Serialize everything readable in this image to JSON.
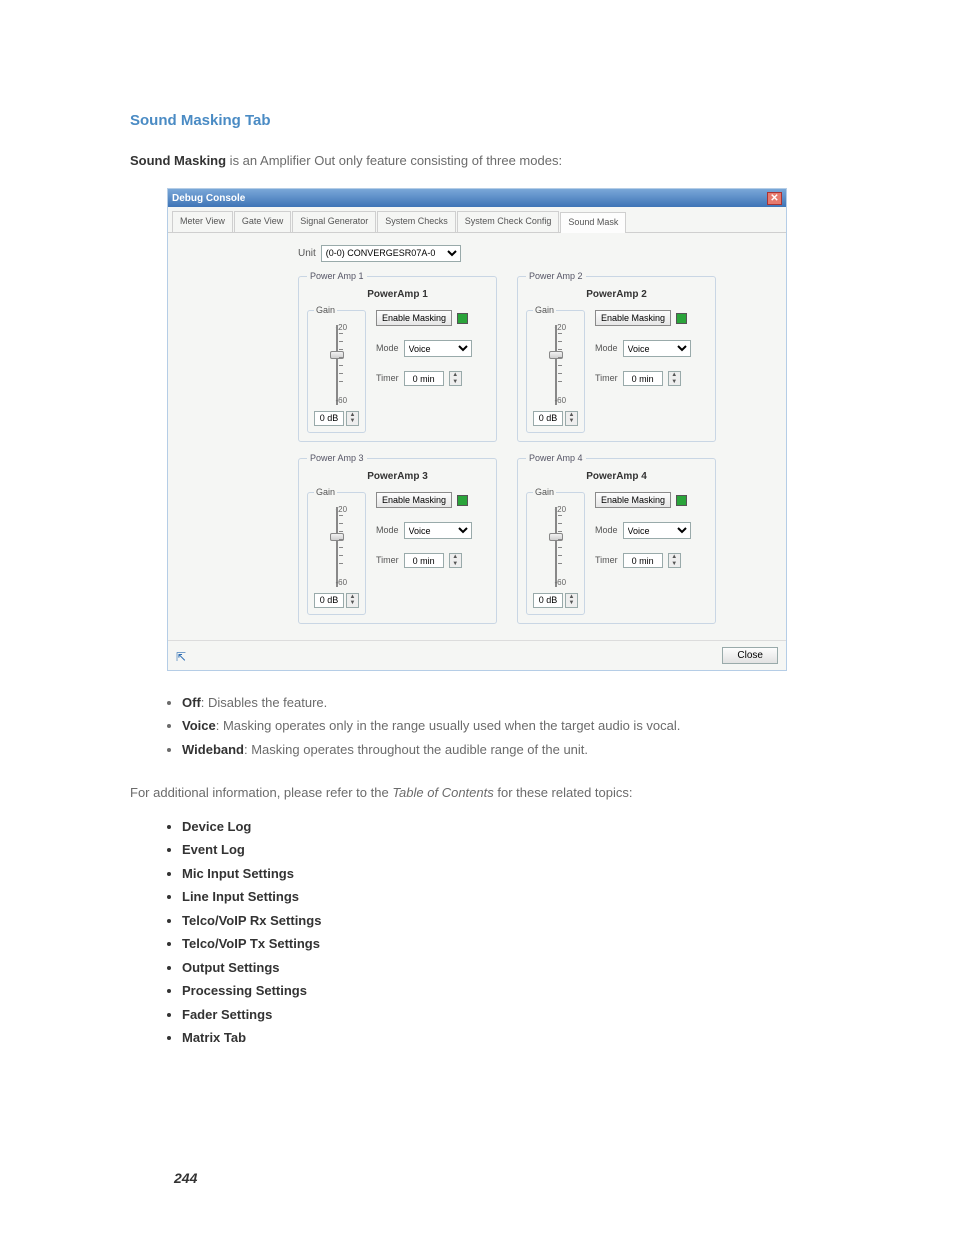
{
  "section_title": "Sound Masking Tab",
  "intro": {
    "bold": "Sound Masking",
    "rest": " is an Amplifier Out only feature consisting of three modes:"
  },
  "console": {
    "title": "Debug Console",
    "tabs": [
      "Meter View",
      "Gate View",
      "Signal Generator",
      "System Checks",
      "System Check Config",
      "Sound Mask"
    ],
    "active_tab_index": 5,
    "unit_label": "Unit",
    "unit_value": "(0-0) CONVERGESR07A-0",
    "amps": [
      {
        "legend": "Power Amp 1",
        "title": "PowerAmp 1"
      },
      {
        "legend": "Power Amp 2",
        "title": "PowerAmp 2"
      },
      {
        "legend": "Power Amp 3",
        "title": "PowerAmp 3"
      },
      {
        "legend": "Power Amp 4",
        "title": "PowerAmp 4"
      }
    ],
    "amp_defaults": {
      "gain_legend": "Gain",
      "scale_top": "-20",
      "scale_bottom": "-60",
      "gain_value": "0 dB",
      "enable_label": "Enable Masking",
      "mode_label": "Mode",
      "mode_value": "Voice",
      "timer_label": "Timer",
      "timer_value": "0 min"
    },
    "close_button": "Close"
  },
  "modes": [
    {
      "name": "Off",
      "desc": ": Disables the feature."
    },
    {
      "name": "Voice",
      "desc": ": Masking operates only in the range usually used when the target audio is vocal."
    },
    {
      "name": "Wideband",
      "desc": ": Masking operates throughout the audible range of the unit."
    }
  ],
  "related_para_pre": "For additional information, please refer to the ",
  "related_para_italic": "Table of Contents",
  "related_para_post": " for these related topics:",
  "topics": [
    "Device Log",
    "Event Log",
    "Mic Input Settings",
    "Line Input Settings",
    "Telco/VoIP Rx Settings",
    "Telco/VoIP Tx Settings",
    "Output Settings",
    "Processing Settings",
    "Fader Settings",
    "Matrix Tab"
  ],
  "page_number": "244",
  "colors": {
    "accent": "#4a8bc4",
    "titlebar_top": "#7aa7d8",
    "titlebar_bottom": "#3e74b6",
    "indicator": "#2aa43a"
  }
}
